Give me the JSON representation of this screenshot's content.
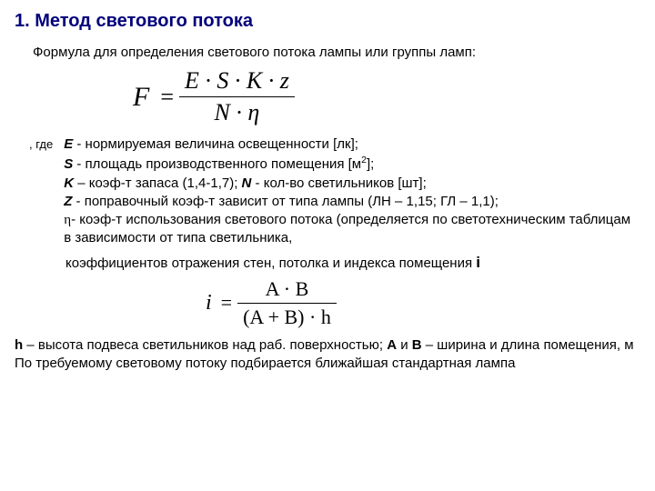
{
  "title": "1. Метод светового потока",
  "intro": "Формула для определения светового потока лампы или группы ламп:",
  "formula1": {
    "lhs": "F",
    "numerator": "E · S · K · z",
    "denominator": "N · η"
  },
  "gde_label": ", где",
  "defs": {
    "e": {
      "sym": "E",
      "txt": " - нормируемая величина освещенности [лк];"
    },
    "s": {
      "sym": "S",
      "txt": " - площадь производственного помещения [м",
      "sup": "2",
      "suffix": "];"
    },
    "k": {
      "sym": "K",
      "txt": " – коэф-т запаса (1,4-1,7); ",
      "sym2": "N",
      "txt2": " - кол-во светильников [шт];"
    },
    "z": {
      "sym": "Z",
      "txt": " - поправочный коэф-т зависит от типа лампы (ЛН – 1,15; ГЛ – 1,1);"
    },
    "eta": {
      "sym": "η",
      "txt": "- коэф-т использования светового потока (определяется по светотехническим таблицам в зависимости от типа светильника,"
    }
  },
  "coeff_line": {
    "pre": "коэффициентов отражения стен, потолка и индекса помещения ",
    "sym": "i"
  },
  "formula2": {
    "lhs": "i",
    "numerator": "A · B",
    "denominator": "(A + B) · h"
  },
  "bottom": {
    "line1_pre": "",
    "h_sym": "h",
    "line1_mid": " – высота подвеса светильников над раб. поверхностью; ",
    "a_sym": "A",
    "and": " и ",
    "b_sym": "B",
    "line1_suf": " – ширина и длина помещения, м",
    "line2": "По требуемому световому потоку подбирается ближайшая стандартная лампа"
  }
}
